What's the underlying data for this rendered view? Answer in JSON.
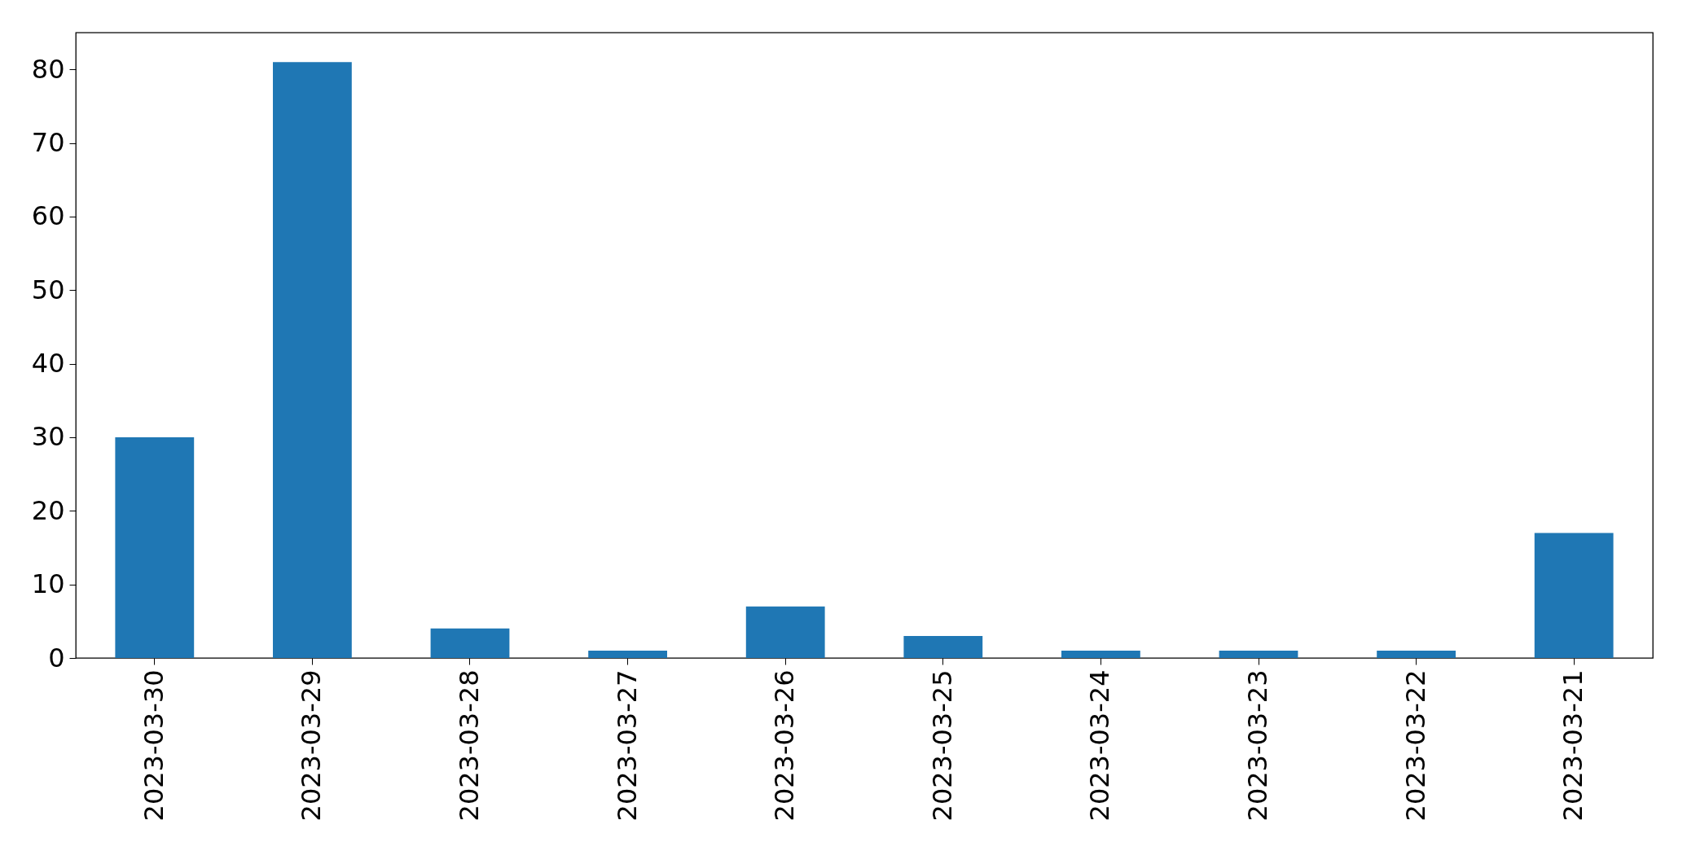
{
  "chart_data": {
    "type": "bar",
    "categories": [
      "2023-03-30",
      "2023-03-29",
      "2023-03-28",
      "2023-03-27",
      "2023-03-26",
      "2023-03-25",
      "2023-03-24",
      "2023-03-23",
      "2023-03-22",
      "2023-03-21"
    ],
    "values": [
      30,
      81,
      4,
      1,
      7,
      3,
      1,
      1,
      1,
      17
    ],
    "color": "#1f77b4",
    "ylim": [
      0,
      85
    ],
    "yticks": [
      0,
      10,
      20,
      30,
      40,
      50,
      60,
      70,
      80
    ],
    "grid": false
  }
}
